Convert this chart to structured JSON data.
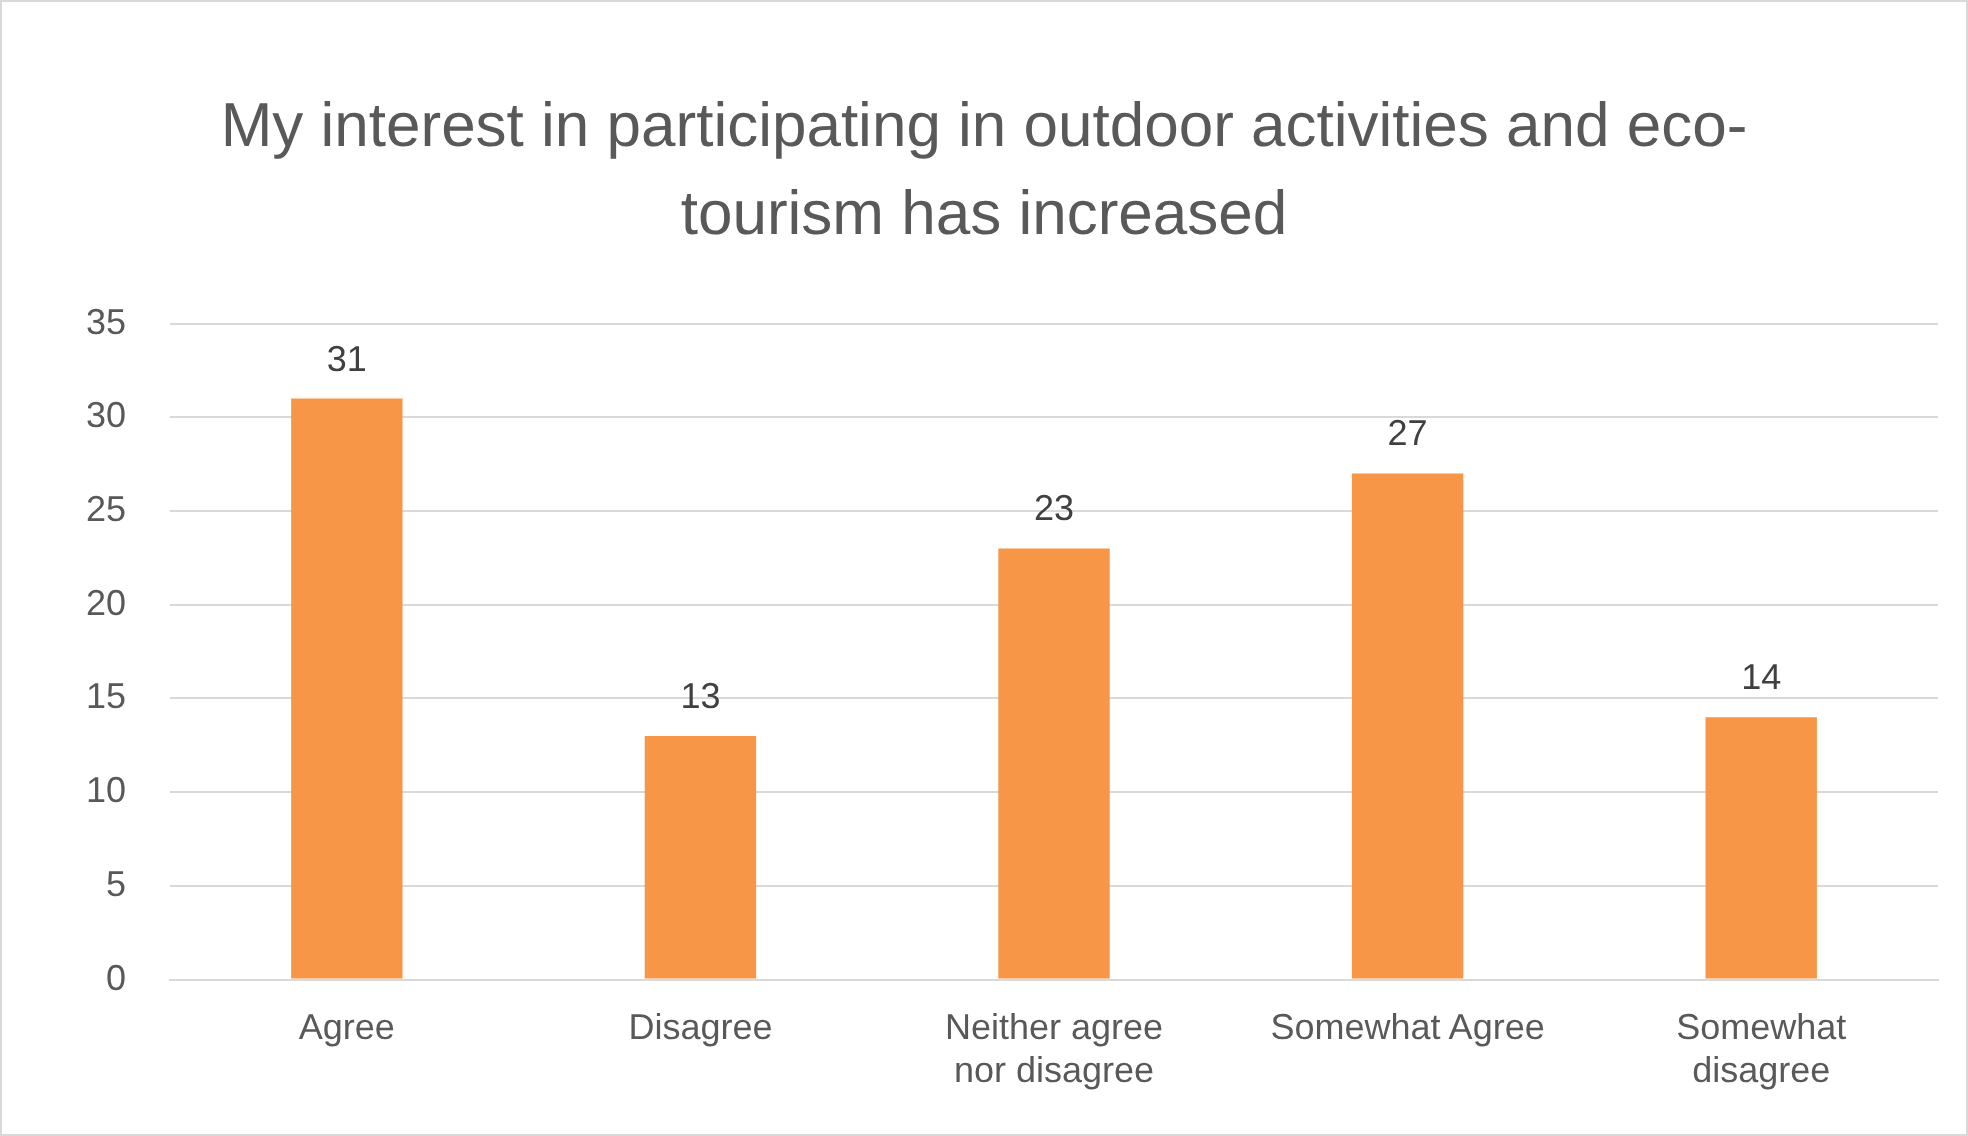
{
  "chart_data": {
    "type": "bar",
    "title": "My interest in participating in outdoor activities and eco-tourism has increased",
    "categories": [
      "Agree",
      "Disagree",
      "Neither agree nor disagree",
      "Somewhat Agree",
      "Somewhat disagree"
    ],
    "values": [
      31,
      13,
      23,
      27,
      14
    ],
    "color": "#f79646",
    "ylim": [
      0,
      35
    ],
    "yticks": [
      0,
      5,
      10,
      15,
      20,
      25,
      30,
      35
    ],
    "grid": "y",
    "legend": false,
    "data_labels": true
  }
}
